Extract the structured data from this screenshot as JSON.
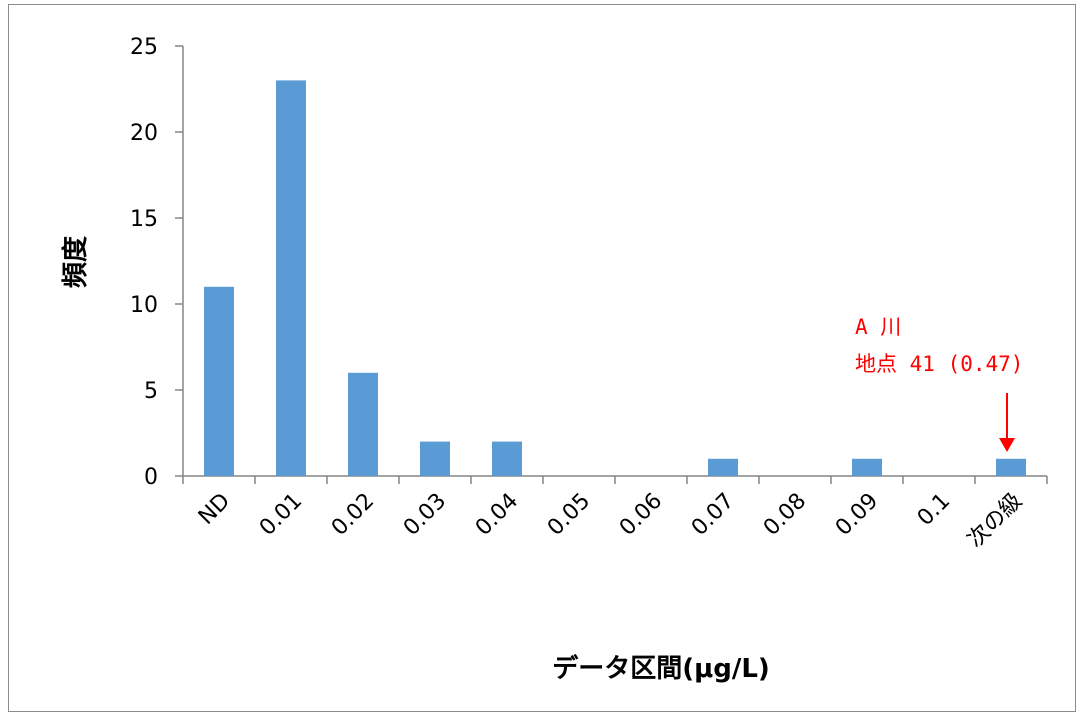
{
  "chart_data": {
    "type": "bar",
    "title": "",
    "xlabel": "データ区間(μg/L)",
    "ylabel": "頻度",
    "categories": [
      "ND",
      "0.01",
      "0.02",
      "0.03",
      "0.04",
      "0.05",
      "0.06",
      "0.07",
      "0.08",
      "0.09",
      "0.1",
      "次の級"
    ],
    "values": [
      11,
      23,
      6,
      2,
      2,
      0,
      0,
      1,
      0,
      1,
      0,
      1
    ],
    "ylim": [
      0,
      25
    ],
    "yticks": [
      "0",
      "5",
      "10",
      "15",
      "20",
      "25"
    ],
    "grid": false,
    "legend": "none",
    "bar_color": "#5b9bd5",
    "annotation": {
      "line1": "A 川",
      "line2": "地点 41 (0.47)",
      "color": "#ff0000",
      "category": "次の級"
    }
  }
}
